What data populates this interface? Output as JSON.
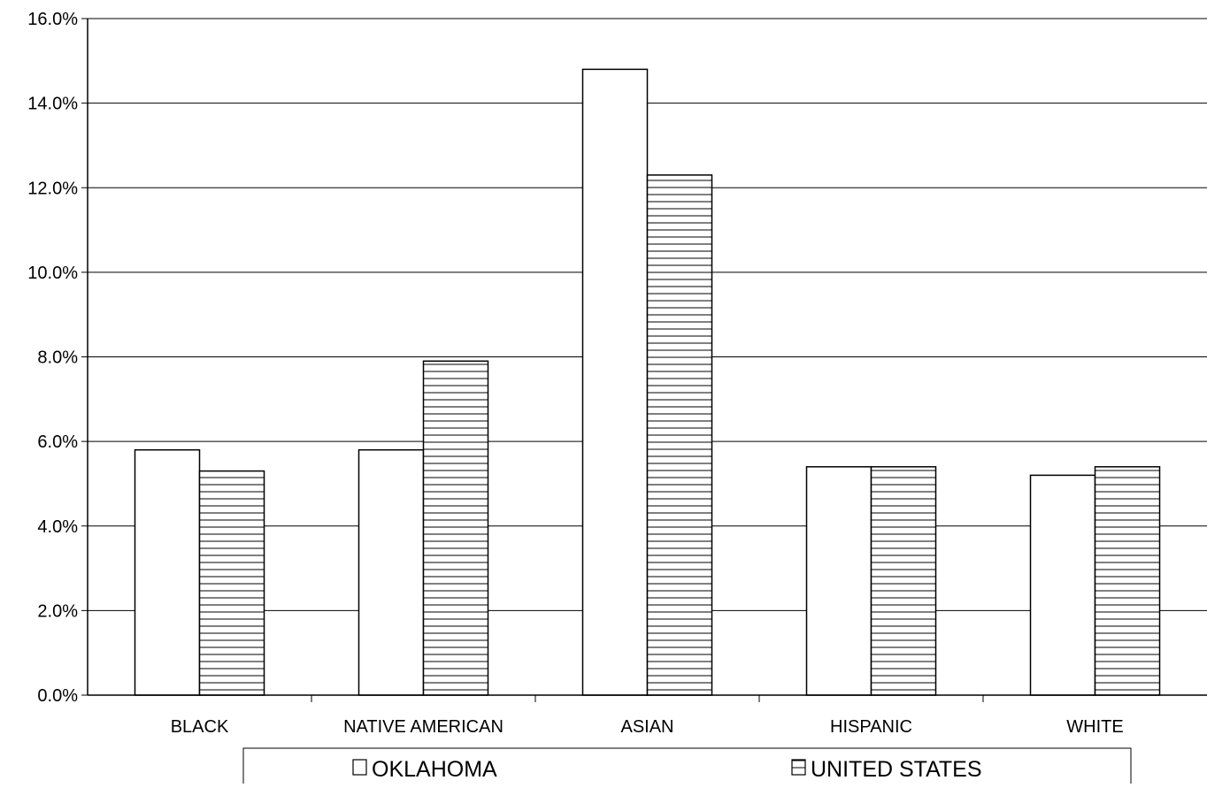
{
  "chart_data": {
    "type": "bar",
    "title": "",
    "xlabel": "",
    "ylabel": "",
    "ylim": [
      0,
      16
    ],
    "y_ticks": [
      "0.0%",
      "2.0%",
      "4.0%",
      "6.0%",
      "8.0%",
      "10.0%",
      "12.0%",
      "14.0%",
      "16.0%"
    ],
    "y_tick_values": [
      0,
      2,
      4,
      6,
      8,
      10,
      12,
      14,
      16
    ],
    "grid": true,
    "legend_position": "bottom",
    "categories": [
      "BLACK",
      "NATIVE AMERICAN",
      "ASIAN",
      "HISPANIC",
      "WHITE"
    ],
    "series": [
      {
        "name": "OKLAHOMA",
        "values": [
          5.8,
          5.8,
          14.8,
          5.4,
          5.2
        ],
        "fill": "white"
      },
      {
        "name": "UNITED STATES",
        "values": [
          5.3,
          7.9,
          12.3,
          5.4,
          5.4
        ],
        "fill": "horizontal-stripes"
      }
    ],
    "colors": {
      "bar_stroke": "#000000",
      "background": "#ffffff",
      "grid": "#000000"
    }
  }
}
